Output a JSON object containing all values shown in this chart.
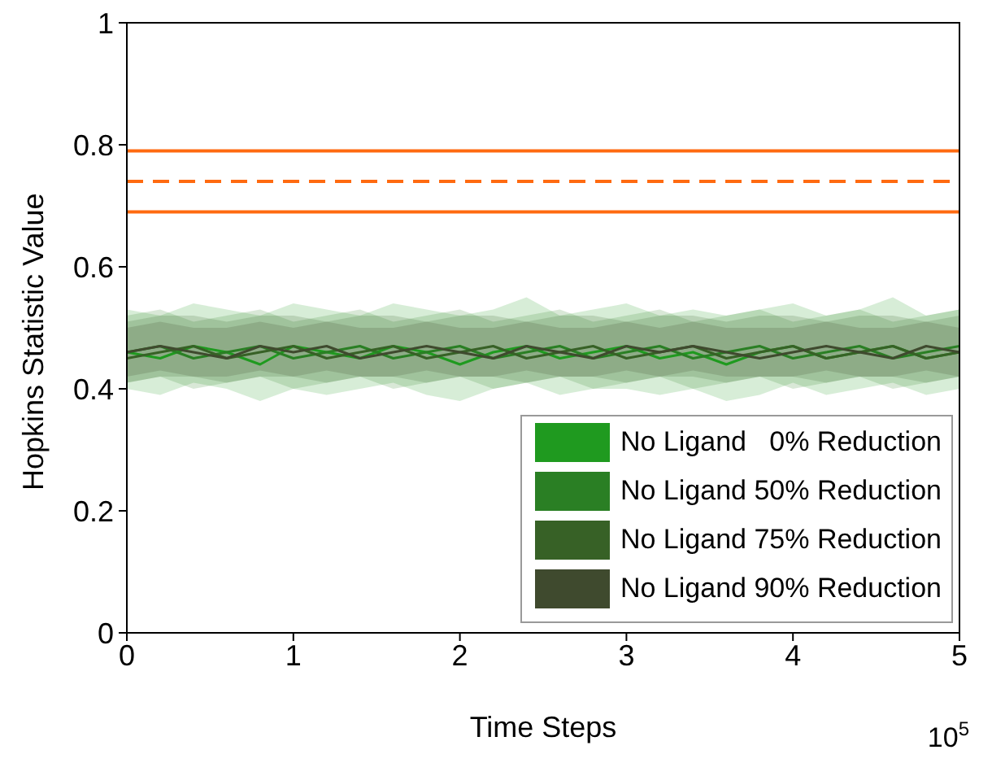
{
  "chart_data": {
    "type": "line",
    "xlabel": "Time Steps",
    "ylabel": "Hopkins Statistic Value",
    "annotations": [
      "10$^{5}$"
    ],
    "x": [
      0,
      0.2,
      0.4,
      0.6,
      0.8,
      1,
      1.2,
      1.4,
      1.6,
      1.8,
      2,
      2.2,
      2.4,
      2.6,
      2.8,
      3,
      3.2,
      3.4,
      3.6,
      3.8,
      4,
      4.2,
      4.4,
      4.6,
      4.8,
      5
    ],
    "series": [
      {
        "name": "No Ligand   0% Reduction",
        "color": "#1f9a1f",
        "values": [
          0.46,
          0.45,
          0.47,
          0.46,
          0.44,
          0.47,
          0.46,
          0.45,
          0.47,
          0.46,
          0.44,
          0.46,
          0.47,
          0.45,
          0.46,
          0.47,
          0.45,
          0.46,
          0.44,
          0.46,
          0.47,
          0.45,
          0.46,
          0.47,
          0.45,
          0.46
        ],
        "lower": [
          0.4,
          0.39,
          0.41,
          0.4,
          0.38,
          0.4,
          0.39,
          0.4,
          0.41,
          0.39,
          0.38,
          0.4,
          0.41,
          0.39,
          0.4,
          0.4,
          0.39,
          0.4,
          0.38,
          0.39,
          0.41,
          0.39,
          0.4,
          0.41,
          0.39,
          0.4
        ],
        "upper": [
          0.53,
          0.52,
          0.54,
          0.53,
          0.52,
          0.54,
          0.53,
          0.52,
          0.54,
          0.53,
          0.52,
          0.53,
          0.55,
          0.52,
          0.53,
          0.54,
          0.52,
          0.53,
          0.52,
          0.53,
          0.54,
          0.52,
          0.53,
          0.55,
          0.52,
          0.53
        ]
      },
      {
        "name": "No Ligand 50% Reduction",
        "color": "#2a7f24",
        "values": [
          0.46,
          0.47,
          0.45,
          0.46,
          0.47,
          0.45,
          0.46,
          0.47,
          0.45,
          0.46,
          0.47,
          0.45,
          0.46,
          0.47,
          0.45,
          0.46,
          0.47,
          0.45,
          0.46,
          0.47,
          0.45,
          0.46,
          0.47,
          0.45,
          0.46,
          0.47
        ],
        "lower": [
          0.41,
          0.42,
          0.4,
          0.41,
          0.42,
          0.4,
          0.41,
          0.42,
          0.4,
          0.41,
          0.42,
          0.4,
          0.41,
          0.42,
          0.4,
          0.41,
          0.42,
          0.4,
          0.41,
          0.42,
          0.4,
          0.41,
          0.42,
          0.4,
          0.41,
          0.42
        ],
        "upper": [
          0.52,
          0.53,
          0.51,
          0.52,
          0.53,
          0.51,
          0.52,
          0.53,
          0.51,
          0.52,
          0.53,
          0.51,
          0.52,
          0.53,
          0.51,
          0.52,
          0.53,
          0.51,
          0.52,
          0.53,
          0.51,
          0.52,
          0.53,
          0.51,
          0.52,
          0.53
        ]
      },
      {
        "name": "No Ligand 75% Reduction",
        "color": "#376126",
        "values": [
          0.45,
          0.46,
          0.47,
          0.45,
          0.46,
          0.47,
          0.45,
          0.46,
          0.47,
          0.45,
          0.46,
          0.47,
          0.45,
          0.46,
          0.47,
          0.45,
          0.46,
          0.47,
          0.45,
          0.46,
          0.47,
          0.45,
          0.46,
          0.47,
          0.45,
          0.46
        ],
        "lower": [
          0.41,
          0.42,
          0.42,
          0.41,
          0.42,
          0.42,
          0.41,
          0.42,
          0.42,
          0.41,
          0.42,
          0.42,
          0.41,
          0.42,
          0.42,
          0.41,
          0.42,
          0.42,
          0.41,
          0.42,
          0.42,
          0.41,
          0.42,
          0.42,
          0.41,
          0.42
        ],
        "upper": [
          0.51,
          0.52,
          0.52,
          0.51,
          0.52,
          0.52,
          0.51,
          0.52,
          0.52,
          0.51,
          0.52,
          0.52,
          0.51,
          0.52,
          0.52,
          0.51,
          0.52,
          0.52,
          0.51,
          0.52,
          0.52,
          0.51,
          0.52,
          0.52,
          0.51,
          0.52
        ]
      },
      {
        "name": "No Ligand 90% Reduction",
        "color": "#3f4a2e",
        "values": [
          0.46,
          0.47,
          0.46,
          0.45,
          0.47,
          0.46,
          0.47,
          0.45,
          0.46,
          0.47,
          0.46,
          0.45,
          0.47,
          0.46,
          0.45,
          0.47,
          0.46,
          0.47,
          0.46,
          0.45,
          0.46,
          0.47,
          0.46,
          0.45,
          0.47,
          0.46
        ],
        "lower": [
          0.42,
          0.43,
          0.42,
          0.42,
          0.43,
          0.42,
          0.43,
          0.42,
          0.42,
          0.43,
          0.42,
          0.42,
          0.43,
          0.42,
          0.42,
          0.43,
          0.42,
          0.43,
          0.42,
          0.42,
          0.42,
          0.43,
          0.42,
          0.42,
          0.43,
          0.42
        ],
        "upper": [
          0.5,
          0.51,
          0.5,
          0.5,
          0.51,
          0.5,
          0.51,
          0.5,
          0.5,
          0.51,
          0.5,
          0.5,
          0.51,
          0.5,
          0.5,
          0.51,
          0.5,
          0.51,
          0.5,
          0.5,
          0.5,
          0.51,
          0.5,
          0.5,
          0.51,
          0.5
        ]
      }
    ],
    "xlim": [
      0,
      5
    ],
    "xticks": [
      0,
      1,
      2,
      3,
      4,
      5
    ],
    "ylim": [
      0,
      1
    ],
    "yticks": [
      0,
      0.2,
      0.4,
      0.6,
      0.8,
      1
    ],
    "ref_lines": [
      {
        "axis": "y",
        "value": 0.79,
        "color": "#ff6a10",
        "line_style": "solid"
      },
      {
        "axis": "y",
        "value": 0.74,
        "color": "#ff6a10",
        "line_style": "dashed"
      },
      {
        "axis": "y",
        "value": 0.69,
        "color": "#ff6a10",
        "line_style": "solid"
      }
    ],
    "grid": false,
    "legend": "bottom right",
    "marker": "none",
    "line_style": "solid"
  }
}
